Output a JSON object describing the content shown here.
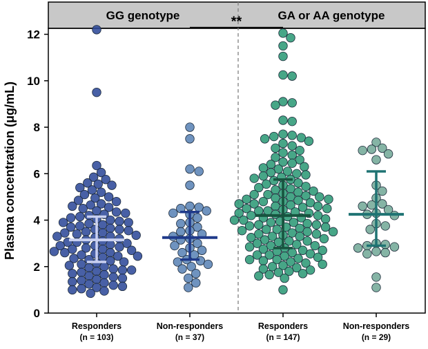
{
  "chart_data": {
    "type": "scatter",
    "subtype": "beeswarm-dot-plot",
    "ylabel": "Plasma concentration (μg/mL)",
    "xlabel": "",
    "ylim": [
      0,
      13
    ],
    "yticks": [
      0,
      2,
      4,
      6,
      8,
      10,
      12
    ],
    "panels": [
      {
        "title": "GG genotype",
        "groups": [
          0,
          1
        ]
      },
      {
        "title": "GA or AA genotype",
        "groups": [
          2,
          3
        ]
      }
    ],
    "groups": [
      {
        "name": "Responders",
        "n_label": "(n = 103)",
        "n": 103,
        "color": "#2f4a9a",
        "line_color": "#c9d0f0",
        "median": 3.15,
        "q1": 2.2,
        "q3": 4.15,
        "points": [
          12.2,
          9.5,
          6.35,
          6.05,
          5.85,
          5.75,
          5.6,
          5.55,
          5.5,
          5.4,
          5.3,
          5.2,
          5.1,
          5.0,
          4.95,
          4.85,
          4.8,
          4.7,
          4.65,
          4.55,
          4.5,
          4.4,
          4.35,
          4.3,
          4.2,
          4.15,
          4.1,
          4.05,
          4.0,
          3.95,
          3.9,
          3.85,
          3.8,
          3.75,
          3.7,
          3.65,
          3.6,
          3.55,
          3.5,
          3.45,
          3.4,
          3.35,
          3.3,
          3.25,
          3.2,
          3.15,
          3.1,
          3.05,
          3.0,
          2.95,
          2.9,
          2.85,
          2.8,
          2.75,
          2.7,
          2.65,
          2.6,
          2.55,
          2.5,
          2.45,
          2.4,
          2.35,
          2.3,
          2.25,
          2.2,
          2.15,
          2.1,
          2.05,
          2.0,
          1.95,
          1.9,
          1.85,
          1.8,
          1.75,
          1.7,
          1.65,
          1.6,
          1.55,
          1.5,
          1.45,
          1.4,
          1.35,
          1.3,
          1.25,
          1.2,
          1.15,
          1.1,
          1.05,
          1.0,
          0.95,
          0.85,
          2.6,
          2.9,
          3.3,
          3.6,
          3.9,
          4.25,
          4.6,
          3.05,
          2.45,
          2.75,
          3.45,
          1.85
        ]
      },
      {
        "name": "Non-responders",
        "n_label": "(n = 37)",
        "n": 37,
        "color": "#5b84b6",
        "line_color": "#1f3a8a",
        "median": 3.25,
        "q1": 2.3,
        "q3": 4.35,
        "points": [
          8.0,
          7.5,
          6.2,
          6.1,
          5.5,
          4.6,
          4.55,
          4.5,
          4.4,
          4.3,
          4.25,
          4.1,
          3.9,
          3.85,
          3.7,
          3.55,
          3.5,
          3.4,
          3.3,
          3.2,
          3.15,
          3.0,
          2.9,
          2.8,
          2.7,
          2.6,
          2.5,
          2.3,
          2.25,
          2.2,
          2.1,
          1.9,
          1.7,
          1.5,
          1.3,
          1.1,
          2.0
        ]
      },
      {
        "name": "Responders",
        "n_label": "(n = 147)",
        "n": 147,
        "color": "#2e9a76",
        "line_color": "#17543f",
        "median": 4.2,
        "q1": 2.8,
        "q3": 5.75,
        "points": [
          12.05,
          11.85,
          11.5,
          11.05,
          10.25,
          10.2,
          9.1,
          9.05,
          8.95,
          8.3,
          8.25,
          7.7,
          7.65,
          7.6,
          7.55,
          7.5,
          7.4,
          7.3,
          7.2,
          7.1,
          7.0,
          6.9,
          6.8,
          6.7,
          6.6,
          6.5,
          6.45,
          6.4,
          6.3,
          6.25,
          6.2,
          6.1,
          6.05,
          6.0,
          5.95,
          5.9,
          5.85,
          5.8,
          5.75,
          5.7,
          5.6,
          5.55,
          5.5,
          5.45,
          5.4,
          5.35,
          5.3,
          5.25,
          5.2,
          5.15,
          5.1,
          5.05,
          5.0,
          4.95,
          4.9,
          4.85,
          4.8,
          4.75,
          4.7,
          4.65,
          4.6,
          4.55,
          4.5,
          4.45,
          4.4,
          4.35,
          4.3,
          4.25,
          4.2,
          4.15,
          4.1,
          4.05,
          4.0,
          3.95,
          3.9,
          3.85,
          3.8,
          3.75,
          3.7,
          3.65,
          3.6,
          3.55,
          3.5,
          3.45,
          3.4,
          3.35,
          3.3,
          3.25,
          3.2,
          3.15,
          3.1,
          3.05,
          3.0,
          2.95,
          2.9,
          2.85,
          2.8,
          2.75,
          2.7,
          2.65,
          2.6,
          2.55,
          2.5,
          2.45,
          2.4,
          2.35,
          2.3,
          2.25,
          2.2,
          2.15,
          2.1,
          2.05,
          2.0,
          1.95,
          1.9,
          1.85,
          1.8,
          1.75,
          1.7,
          1.65,
          1.6,
          1.5,
          1.0,
          4.5,
          4.7,
          4.9,
          5.1,
          4.3,
          4.1,
          3.9,
          3.7,
          3.5,
          3.3,
          3.1,
          2.9,
          2.7,
          4.6,
          4.8,
          5.0,
          4.4,
          4.2,
          4.0,
          3.8,
          3.6,
          3.4,
          2.5,
          2.3
        ]
      },
      {
        "name": "Non-responders",
        "n_label": "(n = 29)",
        "n": 29,
        "color": "#74aa98",
        "line_color": "#1f7373",
        "median": 4.25,
        "q1": 2.9,
        "q3": 6.1,
        "points": [
          7.35,
          7.1,
          7.05,
          7.0,
          6.85,
          6.6,
          5.5,
          5.25,
          4.95,
          4.7,
          4.65,
          4.6,
          4.3,
          4.25,
          4.2,
          3.85,
          3.75,
          3.6,
          3.0,
          2.95,
          2.9,
          2.85,
          2.8,
          2.65,
          2.6,
          2.55,
          1.55,
          1.1,
          4.45
        ]
      }
    ],
    "annotations": [
      {
        "text": "**",
        "from_group": 1,
        "to_group": 2,
        "y": 12.3
      }
    ]
  }
}
